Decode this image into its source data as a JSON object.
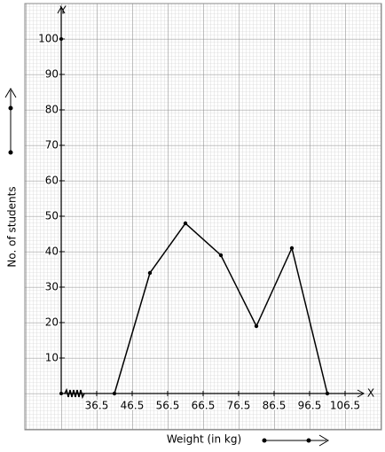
{
  "chart_data": {
    "type": "line",
    "x_label": "Weight (in kg)",
    "y_label": "No. of students",
    "x_axis_letter": "X",
    "y_axis_letter": "Y",
    "x": [
      41.5,
      51.5,
      61.5,
      71.5,
      81.5,
      91.5,
      101.5
    ],
    "values": [
      0,
      34,
      48,
      39,
      19,
      41,
      0
    ],
    "color": "#000000",
    "xlim": [
      26.5,
      111.75
    ],
    "ylim": [
      0,
      109
    ],
    "xticks": [
      36.5,
      46.5,
      56.5,
      66.5,
      76.5,
      86.5,
      96.5,
      106.5
    ],
    "yticks": [
      10,
      20,
      30,
      40,
      50,
      60,
      70,
      80,
      90,
      100
    ],
    "grid": true
  }
}
